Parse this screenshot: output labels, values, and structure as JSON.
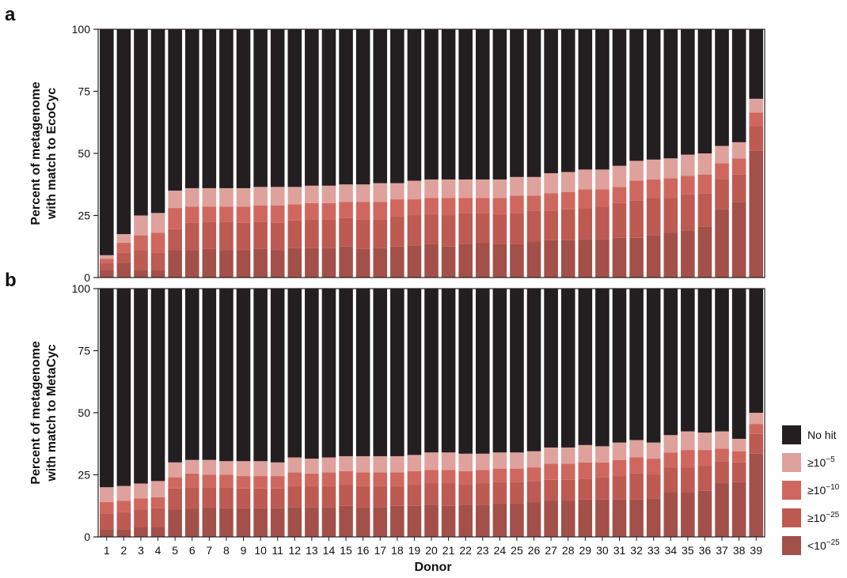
{
  "chart_data": [
    {
      "panel": "a",
      "type": "bar",
      "stacked": true,
      "ylabel_line1": "Percent of metagenome",
      "ylabel_line2": "with match to EcoCyc",
      "xlabel": "",
      "ylim": [
        0,
        100
      ],
      "yticks": [
        "0",
        "25",
        "50",
        "75",
        "100"
      ],
      "categories": [
        "1",
        "2",
        "3",
        "4",
        "5",
        "6",
        "7",
        "8",
        "9",
        "10",
        "11",
        "12",
        "13",
        "14",
        "15",
        "16",
        "17",
        "18",
        "19",
        "20",
        "21",
        "22",
        "23",
        "24",
        "25",
        "26",
        "27",
        "28",
        "29",
        "30",
        "31",
        "32",
        "33",
        "34",
        "35",
        "36",
        "37",
        "38",
        "39"
      ],
      "series": [
        {
          "name": "<10−25",
          "color": "#a3504a",
          "values": [
            3,
            6,
            3,
            3,
            11,
            11,
            11.5,
            11,
            11,
            11.5,
            11,
            12,
            12,
            12,
            12.5,
            11.5,
            12,
            12.5,
            13,
            13.5,
            12.5,
            13.5,
            14,
            13.5,
            13.5,
            14.5,
            15,
            15,
            15.5,
            15.5,
            16,
            16,
            17,
            18,
            19,
            20.5,
            27.5,
            30.5,
            51
          ]
        },
        {
          "name": "≥10−25",
          "color": "#bd5a52",
          "values": [
            3,
            4,
            8,
            7,
            8.5,
            11,
            11,
            11.5,
            11,
            11,
            11,
            11,
            11.5,
            11.5,
            11.5,
            12,
            11.5,
            12,
            12,
            12,
            12.5,
            12.5,
            12,
            12,
            12.5,
            12.5,
            12,
            12.5,
            12.5,
            13,
            14,
            15,
            15,
            14,
            14.5,
            13.5,
            12,
            11,
            10
          ]
        },
        {
          "name": "≥10−10",
          "color": "#d0675f",
          "values": [
            1.5,
            4,
            6,
            8,
            8.5,
            6.5,
            6,
            6,
            6.5,
            6.5,
            7,
            6.5,
            6.5,
            6.5,
            6.5,
            7,
            7,
            7,
            6.5,
            6.5,
            7,
            6,
            6,
            6.5,
            7,
            6,
            7,
            7,
            7.5,
            7,
            6.5,
            8,
            7.5,
            8,
            7.5,
            7.5,
            6.5,
            6.5,
            5.5
          ]
        },
        {
          "name": "≥10−5",
          "color": "#dfa19c",
          "values": [
            1.5,
            3.5,
            8,
            8,
            7,
            7.5,
            7.5,
            7.5,
            7.5,
            7.5,
            7.5,
            7,
            7,
            7,
            7,
            7,
            7.5,
            6.5,
            7.5,
            7.5,
            7.5,
            7.5,
            7.5,
            7.5,
            7.5,
            7.5,
            8,
            8,
            8,
            8,
            8.5,
            8,
            8,
            8,
            8.5,
            8.5,
            7,
            6.5,
            5.5
          ]
        },
        {
          "name": "No hit",
          "color": "#231f20",
          "values": [
            91,
            82.5,
            75,
            74,
            65,
            64,
            64,
            64,
            64,
            63.5,
            63.5,
            63.5,
            63,
            63,
            62.5,
            62.5,
            62,
            62,
            61,
            60.5,
            60.5,
            60.5,
            60.5,
            60.5,
            59.5,
            59.5,
            58,
            57.5,
            56.5,
            56.5,
            55,
            53,
            52.5,
            52,
            50.5,
            50,
            47,
            45.5,
            28
          ]
        }
      ]
    },
    {
      "panel": "b",
      "type": "bar",
      "stacked": true,
      "ylabel_line1": "Percent of metagenome",
      "ylabel_line2": "with match to MetaCyc",
      "xlabel": "Donor",
      "ylim": [
        0,
        100
      ],
      "yticks": [
        "0",
        "25",
        "50",
        "75",
        "100"
      ],
      "categories": [
        "1",
        "2",
        "3",
        "4",
        "5",
        "6",
        "7",
        "8",
        "9",
        "10",
        "11",
        "12",
        "13",
        "14",
        "15",
        "16",
        "17",
        "18",
        "19",
        "20",
        "21",
        "22",
        "23",
        "24",
        "25",
        "26",
        "27",
        "28",
        "29",
        "30",
        "31",
        "32",
        "33",
        "34",
        "35",
        "36",
        "37",
        "38",
        "39"
      ],
      "series": [
        {
          "name": "<10−25",
          "color": "#a3504a",
          "values": [
            3,
            3,
            4,
            4,
            11,
            11.5,
            12,
            11.5,
            11.5,
            11.5,
            11.5,
            12,
            12,
            12,
            12.5,
            12,
            12,
            12.5,
            12.5,
            13,
            12.5,
            13,
            13,
            13.5,
            13.5,
            14,
            14.5,
            14.5,
            15,
            15,
            15,
            15,
            15.5,
            18,
            18,
            18.5,
            21.5,
            22,
            33.5
          ]
        },
        {
          "name": "≥10−25",
          "color": "#bd5a52",
          "values": [
            6.5,
            7,
            7,
            7.5,
            8.5,
            8.5,
            8,
            8.5,
            8,
            8,
            8,
            8.5,
            8.5,
            8.5,
            8.5,
            8.5,
            8.5,
            8,
            8.5,
            8.5,
            9,
            8,
            8.5,
            8.5,
            8.5,
            8.5,
            8.5,
            8.5,
            8.5,
            9,
            9.5,
            10.5,
            9.5,
            10,
            10,
            10,
            9,
            8,
            8
          ]
        },
        {
          "name": "≥10−10",
          "color": "#d0675f",
          "values": [
            4.5,
            4.5,
            4.5,
            4.5,
            4.5,
            5.5,
            5,
            5,
            5,
            5,
            5,
            5.5,
            5,
            5.5,
            5.5,
            5.5,
            5.5,
            5.5,
            5.5,
            5.5,
            5.5,
            5.5,
            5.5,
            5.5,
            5.5,
            5.5,
            6.5,
            6.5,
            6.5,
            6,
            6.5,
            6.5,
            6.5,
            6,
            7,
            6.5,
            5,
            4.5,
            4
          ]
        },
        {
          "name": "≥10−5",
          "color": "#dfa19c",
          "values": [
            6,
            6,
            6,
            6.5,
            6,
            5.5,
            6,
            5.5,
            6,
            6,
            5.5,
            6,
            6,
            6,
            6,
            6.5,
            6.5,
            6.5,
            6.5,
            7,
            7,
            7,
            6.5,
            6.5,
            6.5,
            6.5,
            6.5,
            6.5,
            7,
            6.5,
            7,
            7,
            6.5,
            7,
            7.5,
            7,
            7,
            5,
            4.5
          ]
        },
        {
          "name": "No hit",
          "color": "#231f20",
          "values": [
            80,
            79.5,
            78.5,
            77.5,
            70,
            69,
            69,
            69.5,
            69.5,
            69.5,
            70,
            68,
            68.5,
            68,
            67.5,
            67.5,
            67.5,
            67.5,
            67,
            66,
            66,
            66.5,
            66.5,
            66,
            66,
            65.5,
            64,
            64,
            63,
            63.5,
            62,
            61,
            62,
            59,
            57.5,
            58,
            57.5,
            60.5,
            50
          ]
        }
      ]
    }
  ],
  "panel_letters": {
    "a": "a",
    "b": "b"
  },
  "xlabel": "Donor",
  "legend": {
    "position": "right",
    "items": [
      {
        "label": "No hit",
        "color": "#231f20"
      },
      {
        "base": "≥10",
        "exp": "−5",
        "color": "#dfa19c"
      },
      {
        "base": "≥10",
        "exp": "−10",
        "color": "#d0675f"
      },
      {
        "base": "≥10",
        "exp": "−25",
        "color": "#bd5a52"
      },
      {
        "base": "<10",
        "exp": "−25",
        "color": "#a3504a"
      }
    ]
  }
}
